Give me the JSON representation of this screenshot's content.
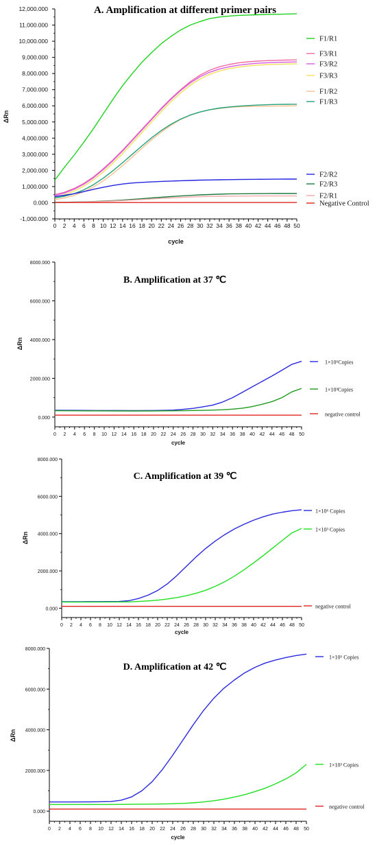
{
  "chart_data": [
    {
      "type": "line",
      "title": "A.    Amplification at different primer pairs",
      "xlabel": "cycle",
      "ylabel": "ΔRn",
      "xlim": [
        0,
        50
      ],
      "ylim": [
        -1000000,
        12000000
      ],
      "xticks": [
        0,
        2,
        4,
        6,
        8,
        10,
        12,
        14,
        16,
        18,
        20,
        22,
        24,
        26,
        28,
        30,
        32,
        34,
        36,
        38,
        40,
        42,
        44,
        46,
        48,
        50
      ],
      "yticks": [
        -1000000,
        0,
        1000000,
        2000000,
        3000000,
        4000000,
        5000000,
        6000000,
        7000000,
        8000000,
        9000000,
        10000000,
        11000000,
        12000000
      ],
      "ytick_labels": [
        "-1,000.000",
        "0.000",
        "1,000.000",
        "2,000.000",
        "3,000.000",
        "4,000.000",
        "5,000.000",
        "6,000.000",
        "7,000.000",
        "8,000.000",
        "9,000.000",
        "10,000.000",
        "11,000.000",
        "12,000.000"
      ],
      "x": [
        0,
        2,
        4,
        6,
        8,
        10,
        12,
        14,
        16,
        18,
        20,
        22,
        24,
        26,
        28,
        30,
        32,
        34,
        36,
        38,
        40,
        42,
        44,
        46,
        48,
        49,
        50
      ],
      "legend_position": "right",
      "series": [
        {
          "name": "F1/R1",
          "color": "#1ed21e",
          "values": [
            1400000,
            2200000,
            2950000,
            3750000,
            4600000,
            5500000,
            6400000,
            7250000,
            8000000,
            8700000,
            9300000,
            9850000,
            10300000,
            10700000,
            11000000,
            11220000,
            11400000,
            11500000,
            11560000,
            11600000,
            11620000,
            11640000,
            11655000,
            11670000,
            11685000,
            11690000,
            11700000
          ]
        },
        {
          "name": "F3/R1",
          "color": "#f06aa0",
          "values": [
            500000,
            650000,
            880000,
            1200000,
            1600000,
            2100000,
            2650000,
            3250000,
            3900000,
            4550000,
            5200000,
            5850000,
            6450000,
            7000000,
            7500000,
            7900000,
            8200000,
            8420000,
            8560000,
            8660000,
            8730000,
            8770000,
            8800000,
            8820000,
            8835000,
            8840000,
            8850000
          ]
        },
        {
          "name": "F3/R2",
          "color": "#d85be0",
          "values": [
            450000,
            600000,
            830000,
            1150000,
            1550000,
            2050000,
            2600000,
            3200000,
            3850000,
            4500000,
            5150000,
            5800000,
            6400000,
            6950000,
            7420000,
            7800000,
            8080000,
            8280000,
            8420000,
            8520000,
            8590000,
            8640000,
            8670000,
            8690000,
            8705000,
            8710000,
            8720000
          ]
        },
        {
          "name": "F3/R3",
          "color": "#f2e05a",
          "values": [
            350000,
            500000,
            720000,
            1030000,
            1420000,
            1900000,
            2450000,
            3050000,
            3700000,
            4350000,
            5000000,
            5650000,
            6250000,
            6800000,
            7280000,
            7660000,
            7950000,
            8150000,
            8300000,
            8400000,
            8470000,
            8520000,
            8550000,
            8570000,
            8590000,
            8595000,
            8600000
          ]
        },
        {
          "name": "F1/R2",
          "color": "#f8c090",
          "values": [
            200000,
            300000,
            450000,
            680000,
            980000,
            1350000,
            1800000,
            2300000,
            2830000,
            3370000,
            3900000,
            4380000,
            4800000,
            5150000,
            5420000,
            5620000,
            5750000,
            5840000,
            5900000,
            5940000,
            5960000,
            5970000,
            5980000,
            5985000,
            5990000,
            5995000,
            6000000
          ]
        },
        {
          "name": "F1/R3",
          "color": "#21a07a",
          "values": [
            300000,
            400000,
            560000,
            800000,
            1120000,
            1520000,
            1980000,
            2480000,
            3000000,
            3520000,
            4020000,
            4470000,
            4860000,
            5180000,
            5430000,
            5620000,
            5760000,
            5860000,
            5930000,
            5980000,
            6020000,
            6050000,
            6070000,
            6085000,
            6095000,
            6100000,
            6100000
          ]
        },
        {
          "name": "F2/R2",
          "color": "#2323e0",
          "values": [
            380000,
            460000,
            560000,
            690000,
            830000,
            960000,
            1070000,
            1160000,
            1220000,
            1260000,
            1290000,
            1320000,
            1340000,
            1360000,
            1380000,
            1400000,
            1410000,
            1420000,
            1430000,
            1440000,
            1445000,
            1450000,
            1455000,
            1460000,
            1462000,
            1463000,
            1465000
          ]
        },
        {
          "name": "F2/R3",
          "color": "#1f7a40",
          "values": [
            20000,
            30000,
            40000,
            55000,
            75000,
            100000,
            130000,
            165000,
            205000,
            250000,
            295000,
            340000,
            380000,
            420000,
            455000,
            485000,
            510000,
            530000,
            545000,
            555000,
            560000,
            565000,
            568000,
            570000,
            571000,
            572000,
            572000
          ]
        },
        {
          "name": "F2/R1",
          "color": "#f3a9a9",
          "values": [
            10000,
            20000,
            30000,
            45000,
            60000,
            80000,
            105000,
            135000,
            165000,
            200000,
            235000,
            270000,
            300000,
            330000,
            355000,
            375000,
            390000,
            400000,
            408000,
            412000,
            415000,
            417000,
            418000,
            419000,
            420000,
            420000,
            420000
          ]
        },
        {
          "name": "Negative Control",
          "color": "#e0241e",
          "values": [
            10000,
            10000,
            10000,
            10000,
            10000,
            10000,
            10000,
            10000,
            10000,
            10000,
            10000,
            10000,
            10000,
            10000,
            10000,
            10000,
            10000,
            10000,
            10000,
            10000,
            10000,
            10000,
            10000,
            10000,
            10000,
            10000,
            10000
          ]
        }
      ]
    },
    {
      "type": "line",
      "title": "B.   Amplification at 37 ℃",
      "xlabel": "cycle",
      "ylabel": "ΔRn",
      "xlim": [
        0,
        50
      ],
      "ylim": [
        -500,
        8000
      ],
      "xticks": [
        0,
        2,
        4,
        6,
        8,
        10,
        12,
        14,
        16,
        18,
        20,
        22,
        24,
        26,
        28,
        30,
        32,
        34,
        36,
        38,
        40,
        42,
        44,
        46,
        48,
        50
      ],
      "yticks": [
        0,
        2000,
        4000,
        6000,
        8000
      ],
      "ytick_labels": [
        "0.000",
        "2000.000",
        "4000.000",
        "6000.000",
        "8000.000"
      ],
      "x": [
        0,
        4,
        8,
        12,
        16,
        20,
        22,
        24,
        26,
        28,
        30,
        32,
        34,
        36,
        38,
        40,
        42,
        44,
        46,
        48,
        50
      ],
      "legend_position": "right",
      "series": [
        {
          "name": "1×10⁶Copies",
          "color": "#2828e0",
          "values": [
            350,
            345,
            340,
            338,
            336,
            340,
            345,
            360,
            400,
            450,
            530,
            620,
            780,
            1000,
            1280,
            1560,
            1840,
            2120,
            2420,
            2720,
            2880
          ]
        },
        {
          "name": "1×10³Copies",
          "color": "#1e9a1e",
          "values": [
            330,
            325,
            320,
            318,
            316,
            318,
            320,
            325,
            330,
            338,
            348,
            360,
            380,
            410,
            460,
            540,
            660,
            800,
            1000,
            1300,
            1480
          ]
        },
        {
          "name": "negative control",
          "color": "#e0241e",
          "values": [
            100,
            100,
            100,
            100,
            100,
            100,
            100,
            100,
            100,
            100,
            100,
            100,
            100,
            100,
            100,
            100,
            100,
            100,
            100,
            100,
            100
          ]
        }
      ]
    },
    {
      "type": "line",
      "title": "C. Amplification at 39 ℃",
      "xlabel": "cycle",
      "ylabel": "ΔRn",
      "xlim": [
        0,
        50
      ],
      "ylim": [
        -500,
        8000
      ],
      "xticks": [
        0,
        2,
        4,
        6,
        8,
        10,
        12,
        14,
        16,
        18,
        20,
        22,
        24,
        26,
        28,
        30,
        32,
        34,
        36,
        38,
        40,
        42,
        44,
        46,
        48,
        50
      ],
      "yticks": [
        0,
        2000,
        4000,
        6000,
        8000
      ],
      "ytick_labels": [
        "0.000",
        "2000.000",
        "4000.000",
        "6000.000",
        "8000.000"
      ],
      "x": [
        0,
        4,
        8,
        12,
        14,
        16,
        18,
        20,
        22,
        24,
        26,
        28,
        30,
        32,
        34,
        36,
        38,
        40,
        42,
        44,
        46,
        48,
        50
      ],
      "legend_position": "right",
      "series": [
        {
          "name": "1×10⁶ Copies",
          "color": "#2828e0",
          "values": [
            350,
            350,
            352,
            360,
            400,
            520,
            700,
            950,
            1300,
            1750,
            2250,
            2750,
            3200,
            3600,
            3950,
            4250,
            4500,
            4720,
            4900,
            5050,
            5150,
            5230,
            5280
          ]
        },
        {
          "name": "1×10³ Copies",
          "color": "#1ee01e",
          "values": [
            330,
            330,
            330,
            335,
            340,
            360,
            390,
            430,
            490,
            570,
            670,
            800,
            960,
            1170,
            1420,
            1720,
            2060,
            2430,
            2820,
            3230,
            3640,
            4040,
            4280
          ]
        },
        {
          "name": "negative control",
          "color": "#e0241e",
          "values": [
            100,
            100,
            100,
            100,
            100,
            100,
            100,
            100,
            100,
            100,
            100,
            100,
            100,
            100,
            100,
            100,
            100,
            100,
            100,
            100,
            100,
            100,
            100
          ]
        }
      ]
    },
    {
      "type": "line",
      "title": "D. Amplification at 42 ℃",
      "xlabel": "cycle",
      "ylabel": "ΔRn",
      "xlim": [
        0,
        50
      ],
      "ylim": [
        -500,
        8000
      ],
      "xticks": [
        0,
        2,
        4,
        6,
        8,
        10,
        12,
        14,
        16,
        18,
        20,
        22,
        24,
        26,
        28,
        30,
        32,
        34,
        36,
        38,
        40,
        42,
        44,
        46,
        48,
        50
      ],
      "yticks": [
        0,
        2000,
        4000,
        6000,
        8000
      ],
      "ytick_labels": [
        "0.000",
        "2000.000",
        "4000.000",
        "6000.000",
        "8000.000"
      ],
      "x": [
        0,
        4,
        8,
        12,
        14,
        16,
        18,
        20,
        22,
        24,
        26,
        28,
        30,
        32,
        34,
        36,
        38,
        40,
        42,
        44,
        46,
        48,
        50
      ],
      "legend_position": "right",
      "series": [
        {
          "name": "1×10⁶ Copies",
          "color": "#2828e0",
          "values": [
            450,
            450,
            455,
            470,
            540,
            700,
            1000,
            1450,
            2050,
            2750,
            3500,
            4250,
            4950,
            5550,
            6050,
            6450,
            6800,
            7070,
            7280,
            7430,
            7550,
            7650,
            7720
          ]
        },
        {
          "name": "1×10³ Copies",
          "color": "#1ee01e",
          "values": [
            330,
            330,
            330,
            330,
            332,
            335,
            340,
            345,
            352,
            362,
            380,
            410,
            450,
            510,
            590,
            690,
            810,
            960,
            1130,
            1340,
            1580,
            1880,
            2300
          ]
        },
        {
          "name": "negative control",
          "color": "#e0241e",
          "values": [
            100,
            100,
            100,
            100,
            100,
            100,
            100,
            100,
            100,
            100,
            100,
            100,
            100,
            100,
            100,
            100,
            100,
            100,
            100,
            100,
            100,
            100,
            100
          ]
        }
      ]
    }
  ]
}
